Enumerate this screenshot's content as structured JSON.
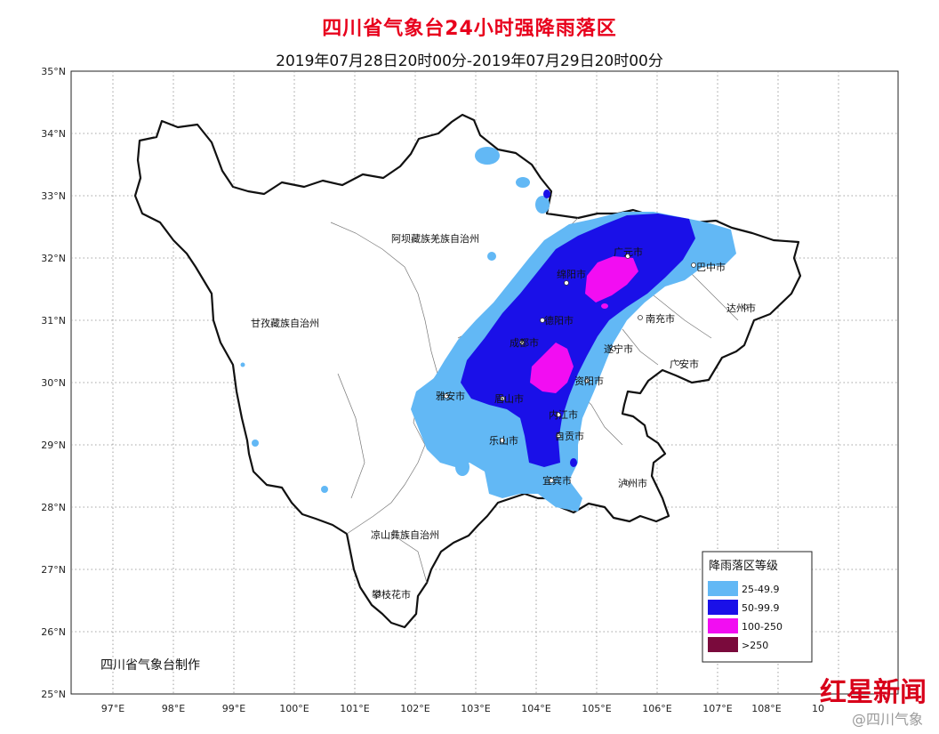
{
  "title": "四川省气象台24小时强降雨落区",
  "subtitle": "2019年07月28日20时00分-2019年07月29日20时00分",
  "axes": {
    "lat_labels": [
      "35°N",
      "34°N",
      "33°N",
      "32°N",
      "31°N",
      "30°N",
      "29°N",
      "28°N",
      "27°N",
      "26°N",
      "25°N"
    ],
    "lon_labels": [
      "97°E",
      "98°E",
      "99°E",
      "100°E",
      "101°E",
      "102°E",
      "103°E",
      "104°E",
      "105°E",
      "106°E",
      "107°E",
      "108°E",
      "10"
    ]
  },
  "regions": [
    {
      "label": "阿坝藏族羌族自治州"
    },
    {
      "label": "甘孜藏族自治州"
    },
    {
      "label": "凉山彝族自治州"
    },
    {
      "label": "攀枝花市"
    },
    {
      "label": "广元市"
    },
    {
      "label": "巴中市"
    },
    {
      "label": "达州市"
    },
    {
      "label": "绵阳市"
    },
    {
      "label": "南充市"
    },
    {
      "label": "德阳市"
    },
    {
      "label": "成都市"
    },
    {
      "label": "遂宁市"
    },
    {
      "label": "广安市"
    },
    {
      "label": "资阳市"
    },
    {
      "label": "雅安市"
    },
    {
      "label": "眉山市"
    },
    {
      "label": "内江市"
    },
    {
      "label": "乐山市"
    },
    {
      "label": "自贡市"
    },
    {
      "label": "宜宾市"
    },
    {
      "label": "泸州市"
    }
  ],
  "legend": {
    "title": "降雨落区等级",
    "items": [
      {
        "label": "25-49.9",
        "color": "#62b8f5"
      },
      {
        "label": "50-99.9",
        "color": "#1a10e8"
      },
      {
        "label": "100-250",
        "color": "#f20df2"
      },
      {
        "label": ">250",
        "color": "#7a0a3c"
      }
    ]
  },
  "credit": "四川省气象台制作",
  "watermark": "红星新闻",
  "watermark_sub": "@四川气象"
}
